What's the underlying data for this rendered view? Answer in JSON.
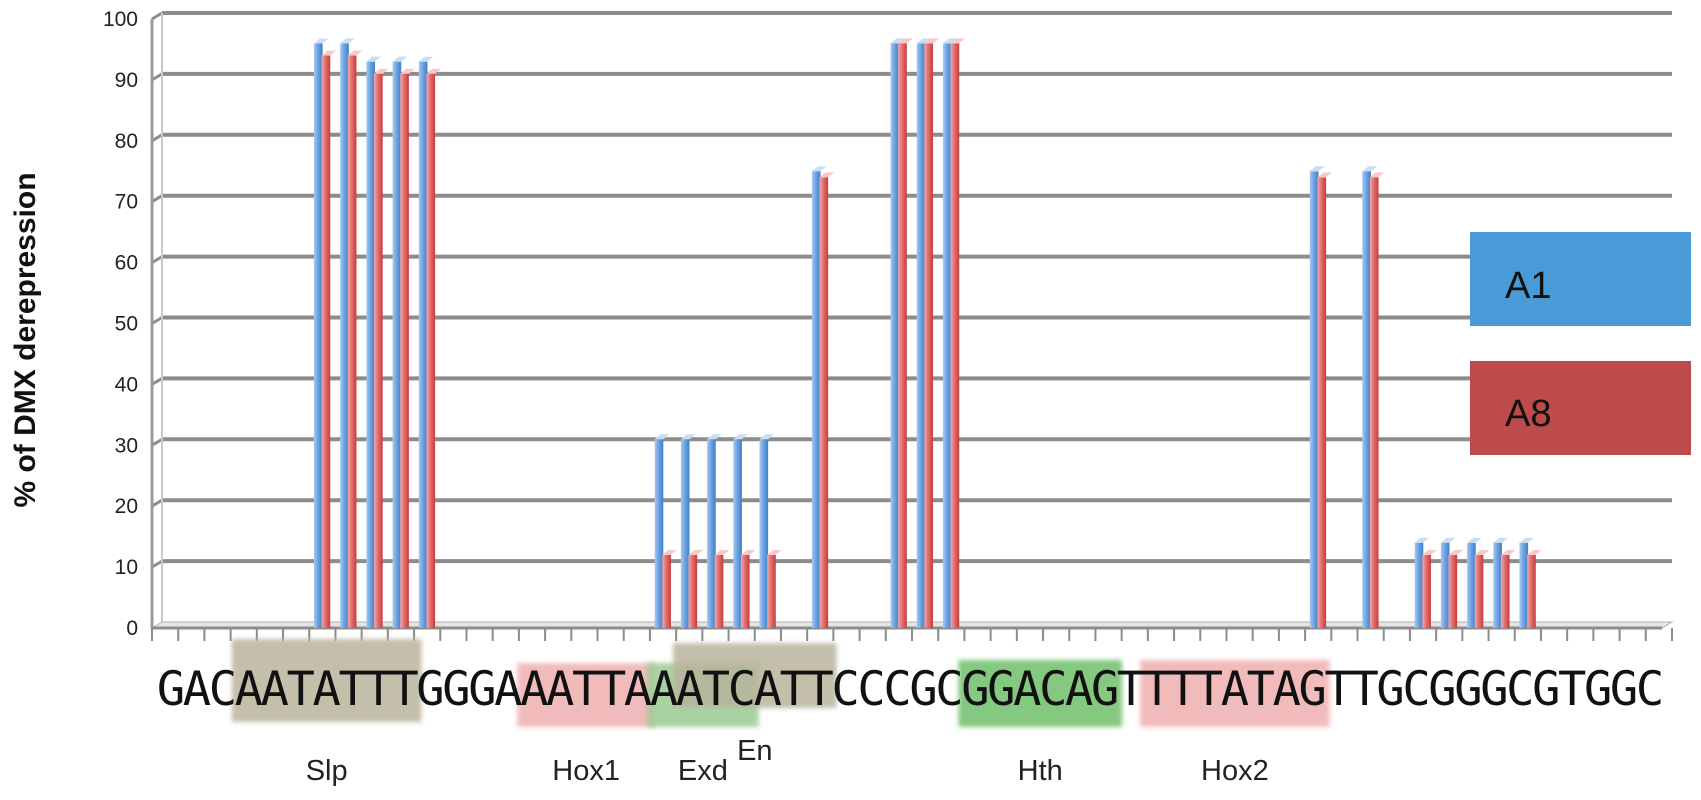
{
  "chart_data": {
    "type": "bar",
    "ylabel": "% of DMX  derepression",
    "ylim": [
      0,
      100
    ],
    "yticks": [
      0,
      10,
      20,
      30,
      40,
      50,
      60,
      70,
      80,
      90,
      100
    ],
    "grid": true,
    "legend_position": "right",
    "sequence": "GACAATATTTGGGAAATTAAATCATTCCCGCGGACAGTTTTATAGTTGCGGGCGTGGC",
    "categories": [
      "G1",
      "A2",
      "C3",
      "A4",
      "A5",
      "T6",
      "A7",
      "T8",
      "T9",
      "T10",
      "G11",
      "G12",
      "G13",
      "A14",
      "A15",
      "A16",
      "T17",
      "T18",
      "A19",
      "A20",
      "A21",
      "T22",
      "C23",
      "A24",
      "T25",
      "T26",
      "C27",
      "C28",
      "C29",
      "G30",
      "C31",
      "G32",
      "G33",
      "A34",
      "C35",
      "A36",
      "G37",
      "T38",
      "T39",
      "T40",
      "T41",
      "A42",
      "T43",
      "A44",
      "G45",
      "T46",
      "T47",
      "G48",
      "C49",
      "G50",
      "G51",
      "G52",
      "C53",
      "G54",
      "T55",
      "G56",
      "G57",
      "C58"
    ],
    "series": [
      {
        "name": "A1",
        "color": "#4a90d9",
        "values": [
          0,
          0,
          0,
          0,
          0,
          0,
          96,
          96,
          93,
          93,
          93,
          0,
          0,
          0,
          0,
          0,
          0,
          0,
          0,
          31,
          31,
          31,
          31,
          31,
          0,
          75,
          0,
          0,
          96,
          96,
          96,
          0,
          0,
          0,
          0,
          0,
          0,
          0,
          0,
          0,
          0,
          0,
          0,
          0,
          75,
          0,
          75,
          0,
          14,
          14,
          14,
          14,
          14,
          0,
          0,
          0,
          0,
          0
        ]
      },
      {
        "name": "A8",
        "color": "#d94a4a",
        "values": [
          0,
          0,
          0,
          0,
          0,
          0,
          94,
          94,
          91,
          91,
          91,
          0,
          0,
          0,
          0,
          0,
          0,
          0,
          0,
          12,
          12,
          12,
          12,
          12,
          0,
          74,
          0,
          0,
          96,
          96,
          96,
          0,
          0,
          0,
          0,
          0,
          0,
          0,
          0,
          0,
          0,
          0,
          0,
          0,
          74,
          0,
          74,
          0,
          12,
          12,
          12,
          12,
          12,
          0,
          0,
          0,
          0,
          0
        ]
      }
    ],
    "binding_sites": [
      {
        "label": "Slp",
        "start": 4,
        "end": 10,
        "color": "#b9b49c"
      },
      {
        "label": "Hox1",
        "start": 15,
        "end": 19,
        "color": "#efb0b0"
      },
      {
        "label": "Exd",
        "start": 20,
        "end": 23,
        "color": "#9ccc94"
      },
      {
        "label": "En",
        "start": 21,
        "end": 26,
        "color": "#b9b49c"
      },
      {
        "label": "Hth",
        "start": 32,
        "end": 37,
        "color": "#6fbf6a"
      },
      {
        "label": "Hox2",
        "start": 39,
        "end": 45,
        "color": "#efb0b0"
      }
    ],
    "legend": {
      "A1": {
        "label": "A1",
        "color": "#4a9ad8"
      },
      "A8": {
        "label": "A8",
        "color": "#bd4b4b"
      }
    }
  }
}
